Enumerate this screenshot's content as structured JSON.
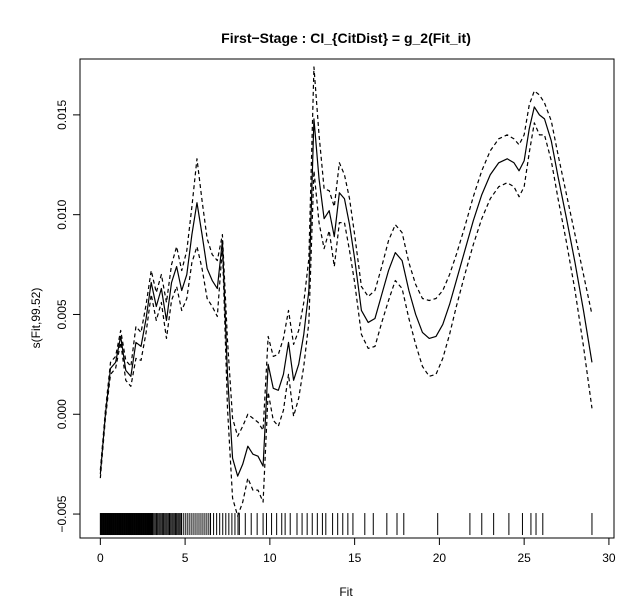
{
  "chart_data": {
    "type": "line",
    "title": "First−Stage : CI_{CitDist} = g_2(Fit_it)",
    "xlabel": "Fit",
    "ylabel": "s(Fit,99.52)",
    "xlim": [
      -1.2,
      30.3
    ],
    "ylim": [
      -0.0062,
      0.0178
    ],
    "x_ticks": [
      0,
      5,
      10,
      15,
      20,
      25,
      30
    ],
    "y_ticks": [
      -0.005,
      0.0,
      0.005,
      0.01,
      0.015
    ],
    "x_tick_labels": [
      "0",
      "5",
      "10",
      "15",
      "20",
      "25",
      "30"
    ],
    "y_tick_labels": [
      "−0.005",
      "0.000",
      "0.005",
      "0.010",
      "0.015"
    ],
    "series": [
      {
        "role": "fit",
        "style": "solid",
        "points": [
          [
            0.0,
            -0.003
          ],
          [
            0.3,
            0.0
          ],
          [
            0.6,
            0.0023
          ],
          [
            0.9,
            0.0026
          ],
          [
            1.2,
            0.0039
          ],
          [
            1.5,
            0.0022
          ],
          [
            1.8,
            0.0019
          ],
          [
            2.1,
            0.0036
          ],
          [
            2.4,
            0.0034
          ],
          [
            2.7,
            0.0048
          ],
          [
            3.0,
            0.0066
          ],
          [
            3.3,
            0.0054
          ],
          [
            3.6,
            0.0063
          ],
          [
            3.9,
            0.0047
          ],
          [
            4.2,
            0.0066
          ],
          [
            4.5,
            0.0074
          ],
          [
            4.8,
            0.0062
          ],
          [
            5.1,
            0.007
          ],
          [
            5.4,
            0.009
          ],
          [
            5.7,
            0.0106
          ],
          [
            6.0,
            0.009
          ],
          [
            6.3,
            0.0073
          ],
          [
            6.6,
            0.0067
          ],
          [
            6.9,
            0.0063
          ],
          [
            7.2,
            0.0087
          ],
          [
            7.5,
            0.002
          ],
          [
            7.8,
            -0.0022
          ],
          [
            8.1,
            -0.0031
          ],
          [
            8.4,
            -0.0025
          ],
          [
            8.7,
            -0.0016
          ],
          [
            9.0,
            -0.002
          ],
          [
            9.3,
            -0.0021
          ],
          [
            9.6,
            -0.0026
          ],
          [
            9.9,
            0.0025
          ],
          [
            10.2,
            0.0013
          ],
          [
            10.5,
            0.0012
          ],
          [
            10.8,
            0.002
          ],
          [
            11.1,
            0.0036
          ],
          [
            11.4,
            0.0017
          ],
          [
            11.7,
            0.0025
          ],
          [
            12.0,
            0.004
          ],
          [
            12.3,
            0.0062
          ],
          [
            12.6,
            0.0148
          ],
          [
            12.9,
            0.0118
          ],
          [
            13.2,
            0.0098
          ],
          [
            13.5,
            0.0102
          ],
          [
            13.8,
            0.0089
          ],
          [
            14.1,
            0.0111
          ],
          [
            14.4,
            0.0108
          ],
          [
            14.7,
            0.0095
          ],
          [
            15.0,
            0.0078
          ],
          [
            15.4,
            0.0052
          ],
          [
            15.8,
            0.0046
          ],
          [
            16.2,
            0.0048
          ],
          [
            16.6,
            0.006
          ],
          [
            17.0,
            0.0072
          ],
          [
            17.4,
            0.0081
          ],
          [
            17.8,
            0.0077
          ],
          [
            18.2,
            0.0062
          ],
          [
            18.6,
            0.005
          ],
          [
            19.0,
            0.0041
          ],
          [
            19.4,
            0.0038
          ],
          [
            19.8,
            0.0039
          ],
          [
            20.2,
            0.0045
          ],
          [
            20.6,
            0.0055
          ],
          [
            21.0,
            0.0067
          ],
          [
            21.5,
            0.0082
          ],
          [
            22.0,
            0.0097
          ],
          [
            22.5,
            0.011
          ],
          [
            23.0,
            0.012
          ],
          [
            23.5,
            0.0126
          ],
          [
            24.0,
            0.0128
          ],
          [
            24.4,
            0.0126
          ],
          [
            24.7,
            0.0122
          ],
          [
            25.0,
            0.0127
          ],
          [
            25.3,
            0.0143
          ],
          [
            25.6,
            0.0154
          ],
          [
            25.9,
            0.015
          ],
          [
            26.2,
            0.0148
          ],
          [
            26.6,
            0.0137
          ],
          [
            27.0,
            0.0119
          ],
          [
            27.5,
            0.0098
          ],
          [
            28.0,
            0.0076
          ],
          [
            28.5,
            0.0052
          ],
          [
            29.0,
            0.0026
          ]
        ]
      },
      {
        "role": "upper-band",
        "style": "dashed",
        "points": [
          [
            0.0,
            -0.0028
          ],
          [
            0.3,
            0.0002
          ],
          [
            0.6,
            0.0026
          ],
          [
            0.9,
            0.0029
          ],
          [
            1.2,
            0.0042
          ],
          [
            1.5,
            0.0027
          ],
          [
            1.8,
            0.0024
          ],
          [
            2.1,
            0.0044
          ],
          [
            2.4,
            0.0041
          ],
          [
            2.7,
            0.0055
          ],
          [
            3.0,
            0.0072
          ],
          [
            3.3,
            0.0061
          ],
          [
            3.6,
            0.007
          ],
          [
            3.9,
            0.0056
          ],
          [
            4.2,
            0.0075
          ],
          [
            4.5,
            0.0084
          ],
          [
            4.8,
            0.0072
          ],
          [
            5.1,
            0.0082
          ],
          [
            5.4,
            0.0104
          ],
          [
            5.7,
            0.0128
          ],
          [
            6.0,
            0.0107
          ],
          [
            6.3,
            0.0088
          ],
          [
            6.6,
            0.008
          ],
          [
            6.9,
            0.0077
          ],
          [
            7.2,
            0.009
          ],
          [
            7.5,
            0.0037
          ],
          [
            7.8,
            -0.0002
          ],
          [
            8.1,
            -0.0011
          ],
          [
            8.4,
            -0.0006
          ],
          [
            8.7,
            0.0
          ],
          [
            9.0,
            -0.0002
          ],
          [
            9.3,
            -0.0004
          ],
          [
            9.6,
            -0.0008
          ],
          [
            9.9,
            0.0039
          ],
          [
            10.2,
            0.0029
          ],
          [
            10.5,
            0.003
          ],
          [
            10.8,
            0.0038
          ],
          [
            11.1,
            0.0052
          ],
          [
            11.4,
            0.0035
          ],
          [
            11.7,
            0.0042
          ],
          [
            12.0,
            0.0056
          ],
          [
            12.3,
            0.0078
          ],
          [
            12.6,
            0.0174
          ],
          [
            12.9,
            0.014
          ],
          [
            13.2,
            0.0113
          ],
          [
            13.5,
            0.0112
          ],
          [
            13.8,
            0.0104
          ],
          [
            14.1,
            0.0126
          ],
          [
            14.4,
            0.012
          ],
          [
            14.7,
            0.0108
          ],
          [
            15.0,
            0.009
          ],
          [
            15.4,
            0.0064
          ],
          [
            15.8,
            0.0059
          ],
          [
            16.2,
            0.0062
          ],
          [
            16.6,
            0.0074
          ],
          [
            17.0,
            0.0087
          ],
          [
            17.4,
            0.0095
          ],
          [
            17.8,
            0.0091
          ],
          [
            18.2,
            0.0076
          ],
          [
            18.6,
            0.0065
          ],
          [
            19.0,
            0.0058
          ],
          [
            19.4,
            0.0057
          ],
          [
            19.8,
            0.0058
          ],
          [
            20.2,
            0.0062
          ],
          [
            20.6,
            0.007
          ],
          [
            21.0,
            0.008
          ],
          [
            21.5,
            0.0094
          ],
          [
            22.0,
            0.0109
          ],
          [
            22.5,
            0.0122
          ],
          [
            23.0,
            0.0132
          ],
          [
            23.5,
            0.0138
          ],
          [
            24.0,
            0.014
          ],
          [
            24.4,
            0.0138
          ],
          [
            24.7,
            0.0135
          ],
          [
            25.0,
            0.014
          ],
          [
            25.3,
            0.0155
          ],
          [
            25.6,
            0.0162
          ],
          [
            25.9,
            0.016
          ],
          [
            26.2,
            0.0156
          ],
          [
            26.6,
            0.0147
          ],
          [
            27.0,
            0.013
          ],
          [
            27.5,
            0.011
          ],
          [
            28.0,
            0.009
          ],
          [
            28.5,
            0.007
          ],
          [
            29.0,
            0.005
          ]
        ]
      },
      {
        "role": "lower-band",
        "style": "dashed",
        "points": [
          [
            0.0,
            -0.0032
          ],
          [
            0.3,
            -0.0002
          ],
          [
            0.6,
            0.002
          ],
          [
            0.9,
            0.0023
          ],
          [
            1.2,
            0.0036
          ],
          [
            1.5,
            0.0017
          ],
          [
            1.8,
            0.0014
          ],
          [
            2.1,
            0.0028
          ],
          [
            2.4,
            0.0027
          ],
          [
            2.7,
            0.0041
          ],
          [
            3.0,
            0.006
          ],
          [
            3.3,
            0.0047
          ],
          [
            3.6,
            0.0056
          ],
          [
            3.9,
            0.0038
          ],
          [
            4.2,
            0.0057
          ],
          [
            4.5,
            0.0064
          ],
          [
            4.8,
            0.0052
          ],
          [
            5.1,
            0.0058
          ],
          [
            5.4,
            0.0076
          ],
          [
            5.7,
            0.0084
          ],
          [
            6.0,
            0.0073
          ],
          [
            6.3,
            0.0058
          ],
          [
            6.6,
            0.0054
          ],
          [
            6.9,
            0.0049
          ],
          [
            7.2,
            0.0084
          ],
          [
            7.5,
            0.0003
          ],
          [
            7.8,
            -0.0042
          ],
          [
            8.1,
            -0.0051
          ],
          [
            8.4,
            -0.0044
          ],
          [
            8.7,
            -0.0032
          ],
          [
            9.0,
            -0.0038
          ],
          [
            9.3,
            -0.0038
          ],
          [
            9.6,
            -0.0044
          ],
          [
            9.9,
            0.0011
          ],
          [
            10.2,
            -0.0003
          ],
          [
            10.5,
            -0.0006
          ],
          [
            10.8,
            0.0002
          ],
          [
            11.1,
            0.002
          ],
          [
            11.4,
            -0.0001
          ],
          [
            11.7,
            0.0008
          ],
          [
            12.0,
            0.0024
          ],
          [
            12.3,
            0.0046
          ],
          [
            12.6,
            0.0122
          ],
          [
            12.9,
            0.0096
          ],
          [
            13.2,
            0.0083
          ],
          [
            13.5,
            0.0092
          ],
          [
            13.8,
            0.0074
          ],
          [
            14.1,
            0.0096
          ],
          [
            14.4,
            0.0096
          ],
          [
            14.7,
            0.0082
          ],
          [
            15.0,
            0.0066
          ],
          [
            15.4,
            0.004
          ],
          [
            15.8,
            0.0033
          ],
          [
            16.2,
            0.0034
          ],
          [
            16.6,
            0.0046
          ],
          [
            17.0,
            0.0057
          ],
          [
            17.4,
            0.0067
          ],
          [
            17.8,
            0.0063
          ],
          [
            18.2,
            0.0048
          ],
          [
            18.6,
            0.0035
          ],
          [
            19.0,
            0.0024
          ],
          [
            19.4,
            0.0019
          ],
          [
            19.8,
            0.002
          ],
          [
            20.2,
            0.0028
          ],
          [
            20.6,
            0.004
          ],
          [
            21.0,
            0.0054
          ],
          [
            21.5,
            0.007
          ],
          [
            22.0,
            0.0085
          ],
          [
            22.5,
            0.0098
          ],
          [
            23.0,
            0.0108
          ],
          [
            23.5,
            0.0114
          ],
          [
            24.0,
            0.0116
          ],
          [
            24.4,
            0.0114
          ],
          [
            24.7,
            0.0109
          ],
          [
            25.0,
            0.0114
          ],
          [
            25.3,
            0.0131
          ],
          [
            25.6,
            0.0146
          ],
          [
            25.9,
            0.014
          ],
          [
            26.2,
            0.014
          ],
          [
            26.6,
            0.0127
          ],
          [
            27.0,
            0.0108
          ],
          [
            27.5,
            0.0086
          ],
          [
            28.0,
            0.0062
          ],
          [
            28.5,
            0.0034
          ],
          [
            29.0,
            0.0003
          ]
        ]
      }
    ],
    "rug": {
      "y": -0.0055,
      "dense_segments": [
        [
          0.0,
          3.1,
          0.04
        ],
        [
          3.1,
          4.8,
          0.07
        ],
        [
          4.8,
          6.5,
          0.12
        ],
        [
          6.5,
          8.2,
          0.18
        ],
        [
          8.2,
          9.4,
          0.35
        ]
      ],
      "sparse_positions": [
        9.6,
        9.8,
        10.1,
        10.4,
        10.7,
        10.9,
        11.2,
        11.6,
        11.9,
        12.2,
        12.5,
        12.8,
        13.1,
        13.3,
        13.7,
        14.0,
        14.3,
        14.6,
        14.9,
        15.6,
        16.1,
        16.9,
        17.5,
        17.9,
        19.9,
        21.8,
        22.5,
        23.2,
        24.1,
        24.9,
        25.4,
        25.7,
        26.1,
        29.0
      ]
    },
    "grid": false,
    "legend": "none",
    "line_color": "#000000"
  }
}
